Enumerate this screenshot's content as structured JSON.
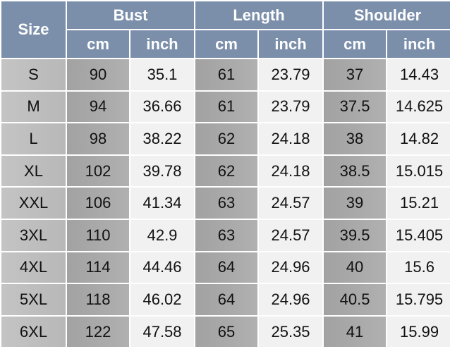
{
  "header": {
    "size": "Size",
    "groups": [
      "Bust",
      "Length",
      "Shoulder"
    ],
    "units": [
      "cm",
      "inch",
      "cm",
      "inch",
      "cm",
      "inch"
    ]
  },
  "rows": [
    [
      "S",
      "90",
      "35.1",
      "61",
      "23.79",
      "37",
      "14.43"
    ],
    [
      "M",
      "94",
      "36.66",
      "61",
      "23.79",
      "37.5",
      "14.625"
    ],
    [
      "L",
      "98",
      "38.22",
      "62",
      "24.18",
      "38",
      "14.82"
    ],
    [
      "XL",
      "102",
      "39.78",
      "62",
      "24.18",
      "38.5",
      "15.015"
    ],
    [
      "XXL",
      "106",
      "41.34",
      "63",
      "24.57",
      "39",
      "15.21"
    ],
    [
      "3XL",
      "110",
      "42.9",
      "63",
      "24.57",
      "39.5",
      "15.405"
    ],
    [
      "4XL",
      "114",
      "44.46",
      "64",
      "24.96",
      "40",
      "15.6"
    ],
    [
      "5XL",
      "118",
      "46.02",
      "64",
      "24.96",
      "40.5",
      "15.795"
    ],
    [
      "6XL",
      "122",
      "47.58",
      "65",
      "25.35",
      "41",
      "15.99"
    ]
  ],
  "colors": {
    "header": "#7b8fab",
    "size_cell": "#c0c0c0",
    "cm_cell": "#a8a8a8",
    "inch_cell": "#f1f1f1"
  }
}
